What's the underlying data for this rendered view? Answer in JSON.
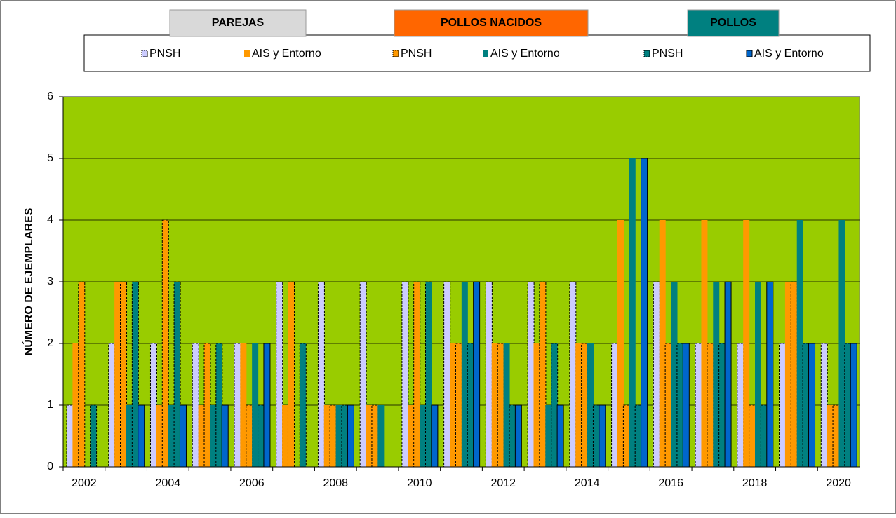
{
  "chart_data": {
    "type": "bar",
    "y_label": "NÚMERO DE EJEMPLARES",
    "groups": [
      {
        "name": "PAREJAS",
        "color": "#d9d9d9"
      },
      {
        "name": "POLLOS NACIDOS",
        "color": "#ff6600"
      },
      {
        "name": "POLLOS",
        "color": "#008080"
      }
    ],
    "categories": [
      "2002",
      null,
      "2004",
      null,
      "2006",
      null,
      "2008",
      null,
      "2010",
      null,
      "2012",
      null,
      "2014",
      null,
      "2016",
      null,
      "2018",
      null,
      "2020"
    ],
    "series": [
      {
        "name": "PNSH",
        "color": "#ccccff",
        "dashed": true,
        "values": [
          1,
          2,
          2,
          2,
          2,
          3,
          3,
          3,
          3,
          3,
          3,
          3,
          3,
          2,
          3,
          2,
          2,
          2,
          2
        ]
      },
      {
        "name": "AIS y Entorno",
        "color": "#ff9900",
        "dashed": false,
        "values": [
          2,
          3,
          1,
          1,
          2,
          1,
          1,
          1,
          1,
          2,
          2,
          2,
          2,
          4,
          4,
          4,
          4,
          3,
          1
        ]
      },
      {
        "name": "PNSH",
        "color": "#ff9900",
        "dashed": true,
        "values": [
          3,
          3,
          4,
          2,
          1,
          3,
          1,
          1,
          3,
          2,
          2,
          3,
          2,
          1,
          2,
          2,
          1,
          3,
          1
        ]
      },
      {
        "name": "AIS y Entorno",
        "color": "#008080",
        "dashed": false,
        "values": [
          0,
          1,
          1,
          1,
          2,
          0,
          1,
          1,
          1,
          3,
          2,
          1,
          2,
          5,
          3,
          3,
          3,
          4,
          4
        ]
      },
      {
        "name": "PNSH",
        "color": "#008080",
        "dashed": true,
        "values": [
          1,
          3,
          3,
          2,
          1,
          2,
          1,
          0,
          3,
          2,
          1,
          2,
          1,
          1,
          2,
          2,
          1,
          2,
          2
        ]
      },
      {
        "name": "AIS y Entorno",
        "color": "#0066cc",
        "dashed": false,
        "values": [
          0,
          1,
          1,
          1,
          2,
          0,
          1,
          0,
          1,
          3,
          1,
          1,
          1,
          5,
          2,
          3,
          3,
          2,
          2
        ]
      }
    ],
    "ylim": [
      0,
      6
    ],
    "yticks": [
      0,
      1,
      2,
      3,
      4,
      5,
      6
    ],
    "grid": true,
    "background": "#99cc00"
  }
}
